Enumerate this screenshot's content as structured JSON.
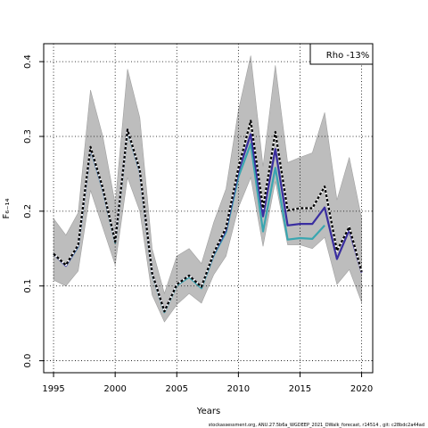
{
  "chart_data": {
    "type": "line",
    "ylabel": "F₆₋₁₄",
    "xlabel": "Years",
    "xlim": [
      1994.2,
      2020.9
    ],
    "ylim": [
      -0.016,
      0.424
    ],
    "x_ticks": [
      1995,
      2000,
      2005,
      2010,
      2015,
      2020
    ],
    "x_tick_labels": [
      "1995",
      "2000",
      "2005",
      "2010",
      "2015",
      "2020"
    ],
    "y_ticks": [
      0.0,
      0.1,
      0.2,
      0.3,
      0.4
    ],
    "y_tick_labels": [
      "0.0",
      "0.1",
      "0.2",
      "0.3",
      "0.4"
    ],
    "grid": true,
    "annotation": "Rho -13%",
    "footer": "stockassessment.org,  ANU.27.5b6a_WGDEEP_2021_DWalk_forecast,  r14514 ,  git: c28bdc2a44ad",
    "band": {
      "x": [
        1995,
        1996,
        1997,
        1998,
        1999,
        2000,
        2001,
        2002,
        2003,
        2004,
        2005,
        2006,
        2007,
        2008,
        2009,
        2010,
        2011,
        2012,
        2013,
        2014,
        2015,
        2016,
        2017,
        2018,
        2019,
        2020
      ],
      "upper": [
        0.19,
        0.168,
        0.198,
        0.362,
        0.3,
        0.21,
        0.39,
        0.325,
        0.15,
        0.09,
        0.14,
        0.15,
        0.13,
        0.185,
        0.23,
        0.335,
        0.408,
        0.26,
        0.395,
        0.265,
        0.272,
        0.278,
        0.332,
        0.215,
        0.272,
        0.19
      ],
      "lower": [
        0.108,
        0.1,
        0.12,
        0.228,
        0.178,
        0.128,
        0.245,
        0.2,
        0.088,
        0.052,
        0.075,
        0.09,
        0.077,
        0.115,
        0.14,
        0.205,
        0.245,
        0.153,
        0.24,
        0.155,
        0.155,
        0.15,
        0.165,
        0.102,
        0.122,
        0.078
      ]
    },
    "series": [
      {
        "color": "#000000",
        "dashed": true,
        "values": [
          0.143,
          0.128,
          0.155,
          0.286,
          0.231,
          0.159,
          0.309,
          0.255,
          0.117,
          0.066,
          0.102,
          0.114,
          0.099,
          0.144,
          0.178,
          0.258,
          0.321,
          0.204,
          0.306,
          0.201,
          0.204,
          0.204,
          0.233,
          0.147,
          0.179,
          0.119
        ]
      },
      {
        "color": "#3a2ea0",
        "dashed": false,
        "values": [
          0.143,
          0.127,
          0.154,
          0.285,
          0.23,
          0.159,
          0.309,
          0.254,
          0.117,
          0.066,
          0.102,
          0.114,
          0.099,
          0.143,
          0.175,
          0.253,
          0.303,
          0.193,
          0.283,
          0.181,
          0.183,
          0.183,
          0.205,
          0.136,
          0.175,
          0.118
        ]
      },
      {
        "color": "#3aa6b0",
        "dashed": false,
        "values": [
          0.143,
          0.127,
          0.153,
          0.284,
          0.229,
          0.158,
          0.308,
          0.253,
          0.116,
          0.065,
          0.101,
          0.112,
          0.097,
          0.141,
          0.172,
          0.246,
          0.29,
          0.173,
          0.258,
          0.162,
          0.164,
          0.163,
          0.181,
          null,
          null,
          null
        ]
      }
    ]
  }
}
